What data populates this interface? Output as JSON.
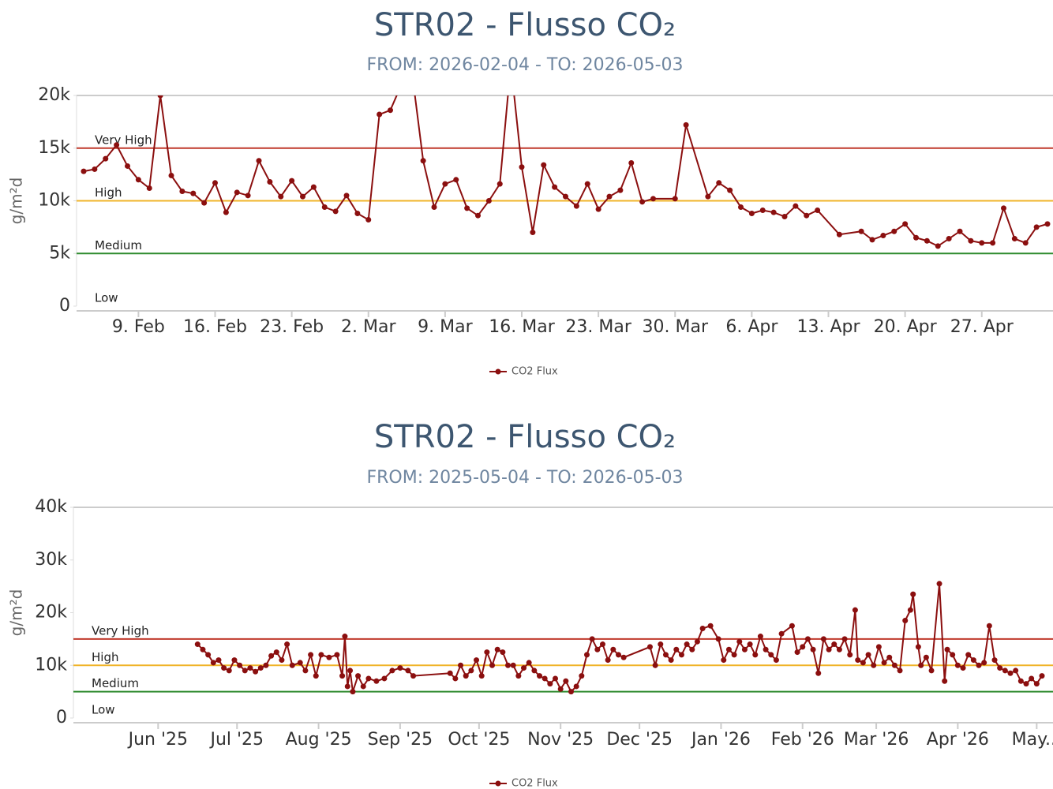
{
  "chart_data": [
    {
      "type": "line",
      "title": "STR02 - Flusso CO₂",
      "subtitle": "FROM: 2026-02-04 - TO: 2026-05-03",
      "y_label": "g/m²d",
      "xlim": [
        "2026-02-04",
        "2026-05-03"
      ],
      "xticks": [
        {
          "value": "2026-02-09",
          "label": "9. Feb"
        },
        {
          "value": "2026-02-16",
          "label": "16. Feb"
        },
        {
          "value": "2026-02-23",
          "label": "23. Feb"
        },
        {
          "value": "2026-03-02",
          "label": "2. Mar"
        },
        {
          "value": "2026-03-09",
          "label": "9. Mar"
        },
        {
          "value": "2026-03-16",
          "label": "16. Mar"
        },
        {
          "value": "2026-03-23",
          "label": "23. Mar"
        },
        {
          "value": "2026-03-30",
          "label": "30. Mar"
        },
        {
          "value": "2026-04-06",
          "label": "6. Apr"
        },
        {
          "value": "2026-04-13",
          "label": "13. Apr"
        },
        {
          "value": "2026-04-20",
          "label": "20. Apr"
        },
        {
          "value": "2026-04-27",
          "label": "27. Apr"
        }
      ],
      "ylim": [
        0,
        20000
      ],
      "yticks": [
        0,
        {
          "value": 5000,
          "label": "5k"
        },
        {
          "value": 10000,
          "label": "10k"
        },
        {
          "value": 15000,
          "label": "15k"
        },
        {
          "value": 20000,
          "label": "20k"
        }
      ],
      "bands": [
        {
          "label": "Very High",
          "value": 15000,
          "color": "#c0392b"
        },
        {
          "label": "High",
          "value": 10000,
          "color": "#f0b429"
        },
        {
          "label": "Medium",
          "value": 5000,
          "color": "#2e8b2e"
        },
        {
          "label": "Low",
          "value": 0
        }
      ],
      "x": [
        "2026-02-04",
        "2026-02-05",
        "2026-02-06",
        "2026-02-07",
        "2026-02-08",
        "2026-02-09",
        "2026-02-10",
        "2026-02-11",
        "2026-02-12",
        "2026-02-13",
        "2026-02-14",
        "2026-02-15",
        "2026-02-16",
        "2026-02-17",
        "2026-02-18",
        "2026-02-19",
        "2026-02-20",
        "2026-02-21",
        "2026-02-22",
        "2026-02-23",
        "2026-02-24",
        "2026-02-25",
        "2026-02-26",
        "2026-02-27",
        "2026-02-28",
        "2026-03-01",
        "2026-03-02",
        "2026-03-03",
        "2026-03-04",
        "2026-03-05",
        "2026-03-06",
        "2026-03-07",
        "2026-03-08",
        "2026-03-09",
        "2026-03-10",
        "2026-03-11",
        "2026-03-12",
        "2026-03-13",
        "2026-03-14",
        "2026-03-15",
        "2026-03-16",
        "2026-03-17",
        "2026-03-18",
        "2026-03-19",
        "2026-03-20",
        "2026-03-21",
        "2026-03-22",
        "2026-03-23",
        "2026-03-24",
        "2026-03-25",
        "2026-03-26",
        "2026-03-27",
        "2026-03-28",
        "2026-03-30",
        "2026-03-31",
        "2026-04-02",
        "2026-04-03",
        "2026-04-04",
        "2026-04-05",
        "2026-04-06",
        "2026-04-07",
        "2026-04-08",
        "2026-04-09",
        "2026-04-10",
        "2026-04-11",
        "2026-04-12",
        "2026-04-14",
        "2026-04-16",
        "2026-04-17",
        "2026-04-18",
        "2026-04-19",
        "2026-04-20",
        "2026-04-21",
        "2026-04-22",
        "2026-04-23",
        "2026-04-24",
        "2026-04-25",
        "2026-04-26",
        "2026-04-27",
        "2026-04-28",
        "2026-04-29",
        "2026-04-30",
        "2026-05-01",
        "2026-05-02",
        "2026-05-03"
      ],
      "series": [
        {
          "name": "CO2 Flux",
          "color": "#8b0f0f",
          "values": [
            12800,
            13000,
            14000,
            15300,
            13300,
            12000,
            11200,
            20000,
            12400,
            10900,
            10700,
            9800,
            11700,
            8900,
            10800,
            10500,
            13800,
            11800,
            10400,
            11900,
            10400,
            11300,
            9400,
            9000,
            10500,
            8800,
            8200,
            18200,
            18600,
            21000,
            22000,
            13800,
            9400,
            11600,
            12000,
            9300,
            8600,
            10000,
            11600,
            23000,
            13200,
            7000,
            13400,
            11300,
            10400,
            9500,
            11600,
            9200,
            10400,
            11000,
            13600,
            9900,
            10200,
            10200,
            17200,
            10400,
            11700,
            11000,
            9400,
            8800,
            9100,
            8900,
            8500,
            9500,
            8600,
            9100,
            6800,
            7100,
            6300,
            6700,
            7100,
            7800,
            6500,
            6200,
            5700,
            6400,
            7100,
            6200,
            6000,
            6000,
            9300,
            6400,
            6000,
            7500,
            7800
          ]
        }
      ]
    },
    {
      "type": "line",
      "title": "STR02 - Flusso CO₂",
      "subtitle": "FROM: 2025-05-04 - TO: 2026-05-03",
      "y_label": "g/m²d",
      "xlim": [
        "2025-05-04",
        "2026-05-03"
      ],
      "xticks": [
        {
          "value": "2025-06-01",
          "label": "Jun '25"
        },
        {
          "value": "2025-07-01",
          "label": "Jul '25"
        },
        {
          "value": "2025-08-01",
          "label": "Aug '25"
        },
        {
          "value": "2025-09-01",
          "label": "Sep '25"
        },
        {
          "value": "2025-10-01",
          "label": "Oct '25"
        },
        {
          "value": "2025-11-01",
          "label": "Nov '25"
        },
        {
          "value": "2025-12-01",
          "label": "Dec '25"
        },
        {
          "value": "2026-01-01",
          "label": "Jan '26"
        },
        {
          "value": "2026-02-01",
          "label": "Feb '26"
        },
        {
          "value": "2026-03-01",
          "label": "Mar '26"
        },
        {
          "value": "2026-04-01",
          "label": "Apr '26"
        },
        {
          "value": "2026-05-01",
          "label": "May..."
        }
      ],
      "ylim": [
        0,
        40000
      ],
      "yticks": [
        0,
        {
          "value": 10000,
          "label": "10k"
        },
        {
          "value": 20000,
          "label": "20k"
        },
        {
          "value": 30000,
          "label": "30k"
        },
        {
          "value": 40000,
          "label": "40k"
        }
      ],
      "bands": [
        {
          "label": "Very High",
          "value": 15000,
          "color": "#c0392b"
        },
        {
          "label": "High",
          "value": 10000,
          "color": "#f0b429"
        },
        {
          "label": "Medium",
          "value": 5000,
          "color": "#2e8b2e"
        },
        {
          "label": "Low",
          "value": 0
        }
      ],
      "x": [
        "2025-06-16",
        "2025-06-18",
        "2025-06-20",
        "2025-06-22",
        "2025-06-24",
        "2025-06-26",
        "2025-06-28",
        "2025-06-30",
        "2025-07-02",
        "2025-07-04",
        "2025-07-06",
        "2025-07-08",
        "2025-07-10",
        "2025-07-12",
        "2025-07-14",
        "2025-07-16",
        "2025-07-18",
        "2025-07-20",
        "2025-07-22",
        "2025-07-25",
        "2025-07-27",
        "2025-07-29",
        "2025-07-31",
        "2025-08-02",
        "2025-08-05",
        "2025-08-08",
        "2025-08-10",
        "2025-08-11",
        "2025-08-12",
        "2025-08-13",
        "2025-08-14",
        "2025-08-16",
        "2025-08-18",
        "2025-08-20",
        "2025-08-23",
        "2025-08-26",
        "2025-08-29",
        "2025-09-01",
        "2025-09-04",
        "2025-09-06",
        "2025-09-20",
        "2025-09-22",
        "2025-09-24",
        "2025-09-26",
        "2025-09-28",
        "2025-09-30",
        "2025-10-02",
        "2025-10-04",
        "2025-10-06",
        "2025-10-08",
        "2025-10-10",
        "2025-10-12",
        "2025-10-14",
        "2025-10-16",
        "2025-10-18",
        "2025-10-20",
        "2025-10-22",
        "2025-10-24",
        "2025-10-26",
        "2025-10-28",
        "2025-10-30",
        "2025-11-01",
        "2025-11-03",
        "2025-11-05",
        "2025-11-07",
        "2025-11-09",
        "2025-11-11",
        "2025-11-13",
        "2025-11-15",
        "2025-11-17",
        "2025-11-19",
        "2025-11-21",
        "2025-11-23",
        "2025-11-25",
        "2025-12-05",
        "2025-12-07",
        "2025-12-09",
        "2025-12-11",
        "2025-12-13",
        "2025-12-15",
        "2025-12-17",
        "2025-12-19",
        "2025-12-21",
        "2025-12-23",
        "2025-12-25",
        "2025-12-28",
        "2025-12-31",
        "2026-01-02",
        "2026-01-04",
        "2026-01-06",
        "2026-01-08",
        "2026-01-10",
        "2026-01-12",
        "2026-01-14",
        "2026-01-16",
        "2026-01-18",
        "2026-01-20",
        "2026-01-22",
        "2026-01-24",
        "2026-01-28",
        "2026-01-30",
        "2026-02-01",
        "2026-02-03",
        "2026-02-05",
        "2026-02-07",
        "2026-02-09",
        "2026-02-11",
        "2026-02-13",
        "2026-02-15",
        "2026-02-17",
        "2026-02-19",
        "2026-02-21",
        "2026-02-22",
        "2026-02-24",
        "2026-02-26",
        "2026-02-28",
        "2026-03-02",
        "2026-03-04",
        "2026-03-06",
        "2026-03-08",
        "2026-03-10",
        "2026-03-12",
        "2026-03-14",
        "2026-03-15",
        "2026-03-17",
        "2026-03-18",
        "2026-03-20",
        "2026-03-22",
        "2026-03-25",
        "2026-03-27",
        "2026-03-28",
        "2026-03-30",
        "2026-04-01",
        "2026-04-03",
        "2026-04-05",
        "2026-04-07",
        "2026-04-09",
        "2026-04-11",
        "2026-04-13",
        "2026-04-15",
        "2026-04-17",
        "2026-04-19",
        "2026-04-21",
        "2026-04-23",
        "2026-04-25",
        "2026-04-27",
        "2026-04-29",
        "2026-05-01",
        "2026-05-03"
      ],
      "series": [
        {
          "name": "CO2 Flux",
          "color": "#8b0f0f",
          "values": [
            14000,
            13000,
            12000,
            10500,
            11000,
            9500,
            9000,
            11000,
            10000,
            9000,
            9500,
            8800,
            9500,
            10000,
            11800,
            12500,
            11000,
            14000,
            10000,
            10500,
            9000,
            12000,
            8000,
            12000,
            11500,
            12000,
            8000,
            15500,
            6000,
            9000,
            5000,
            8000,
            6000,
            7500,
            7000,
            7500,
            9000,
            9500,
            9000,
            8000,
            8500,
            7500,
            10000,
            8000,
            9000,
            11000,
            8000,
            12500,
            10000,
            13000,
            12500,
            10000,
            10000,
            8000,
            9500,
            10500,
            9000,
            8000,
            7500,
            6500,
            7500,
            5500,
            7000,
            5000,
            6000,
            8000,
            12000,
            15000,
            13000,
            14000,
            11000,
            13000,
            12000,
            11500,
            13500,
            10000,
            14000,
            12000,
            11000,
            13000,
            12000,
            14000,
            13000,
            14500,
            17000,
            17500,
            15000,
            11000,
            13000,
            12000,
            14500,
            13000,
            14000,
            12000,
            15500,
            13000,
            12000,
            11000,
            16000,
            17500,
            12500,
            13500,
            15000,
            13000,
            8500,
            15000,
            13000,
            14000,
            13000,
            15000,
            12000,
            20500,
            11000,
            10500,
            12000,
            10000,
            13500,
            10500,
            11500,
            10000,
            9000,
            18500,
            20500,
            23500,
            13500,
            10000,
            11500,
            9000,
            25500,
            7000,
            13000,
            12000,
            10000,
            9500,
            12000,
            11000,
            10000,
            10500,
            17500,
            11000,
            9500,
            9000,
            8500,
            9000,
            7000,
            6500,
            7500,
            6500,
            8000
          ]
        }
      ]
    }
  ]
}
